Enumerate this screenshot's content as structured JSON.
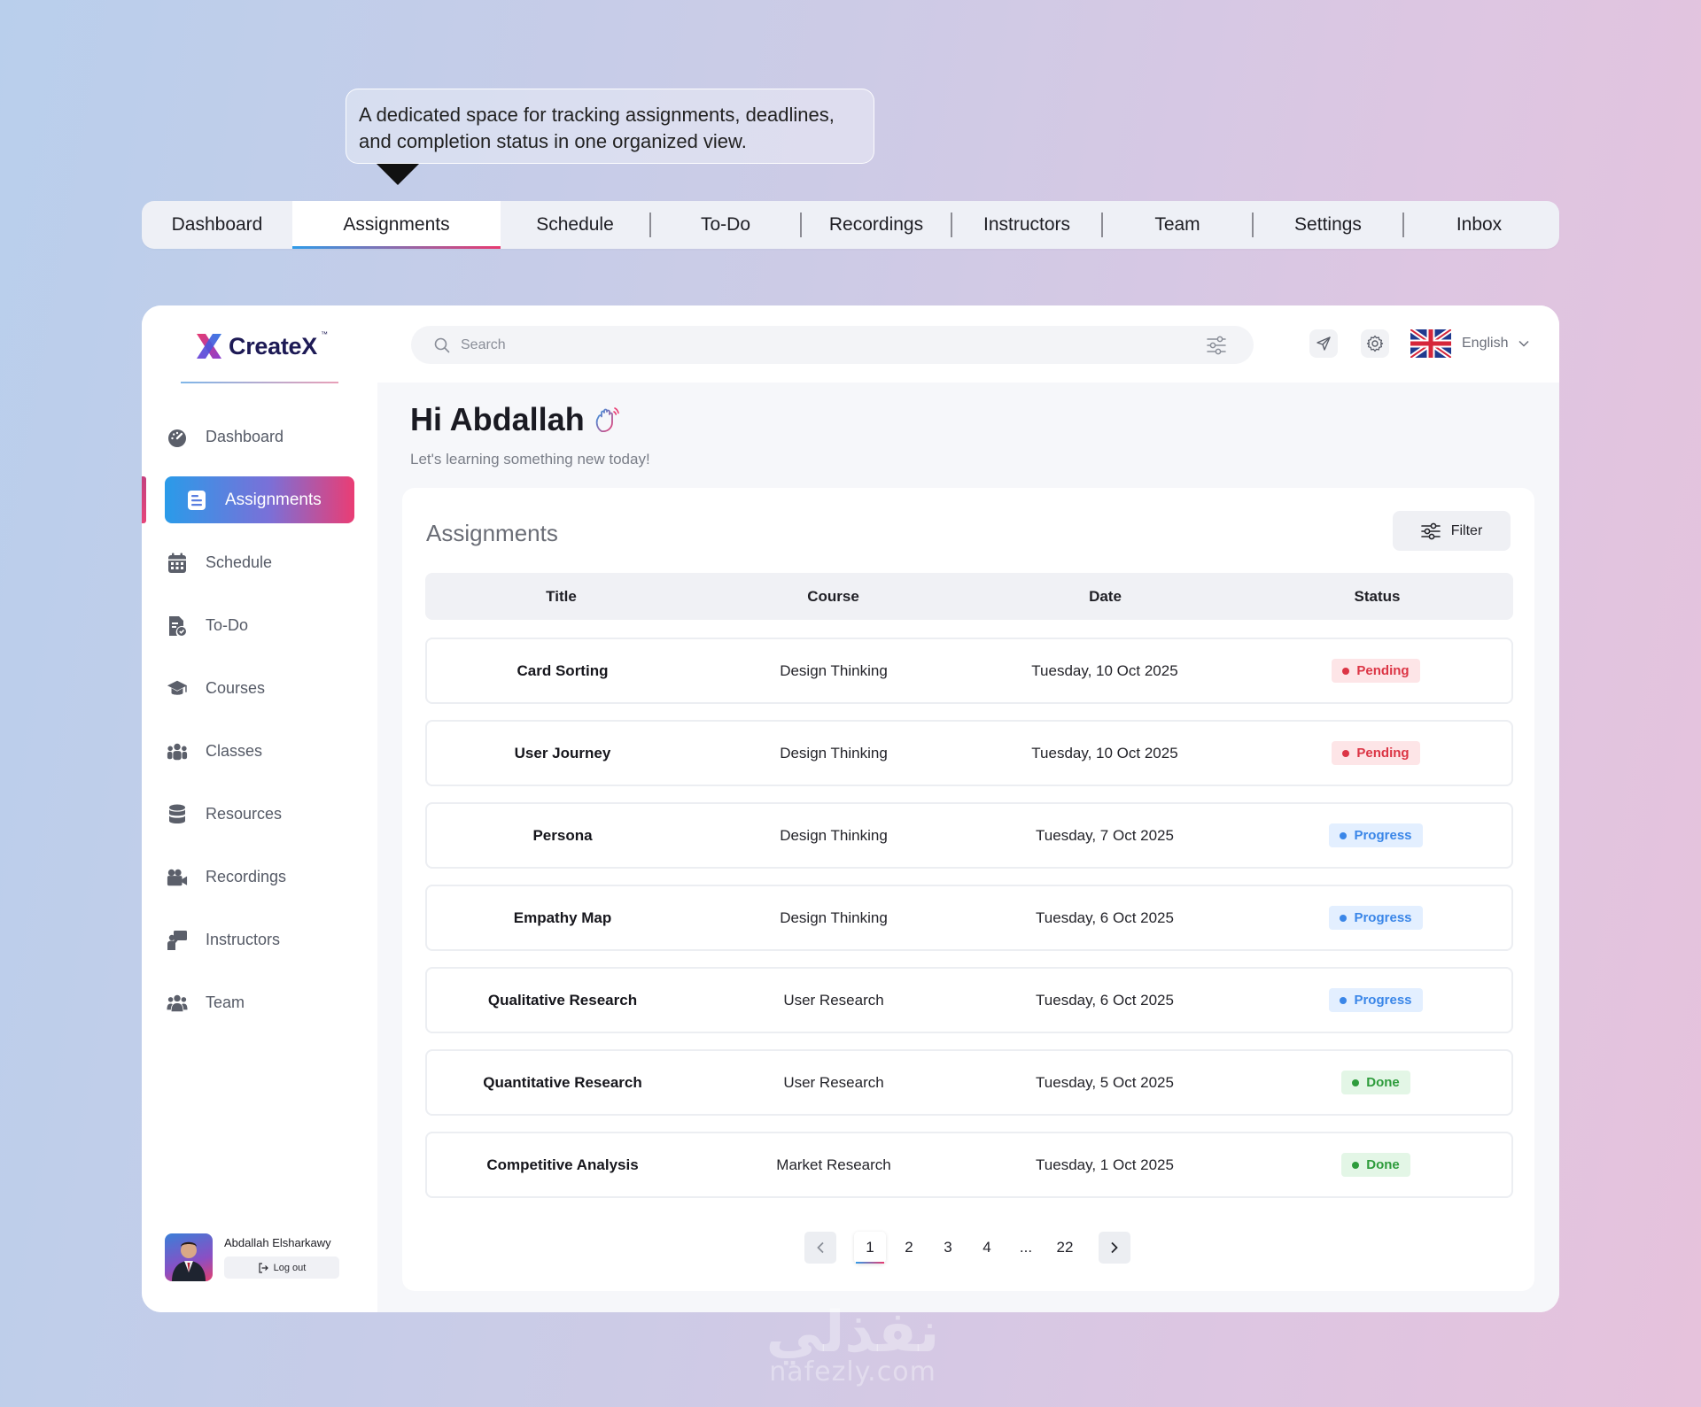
{
  "tooltip": {
    "line1": "A dedicated space for tracking assignments, deadlines,",
    "line2": "and completion status in one organized view."
  },
  "top_tabs": [
    {
      "label": "Dashboard"
    },
    {
      "label": "Assignments",
      "active": true
    },
    {
      "label": "Schedule"
    },
    {
      "label": "To-Do"
    },
    {
      "label": "Recordings"
    },
    {
      "label": "Instructors"
    },
    {
      "label": "Team"
    },
    {
      "label": "Settings"
    },
    {
      "label": "Inbox"
    }
  ],
  "brand": {
    "name": "CreateX",
    "tm": "™"
  },
  "sidebar": {
    "items": [
      {
        "label": "Dashboard",
        "icon": "gauge-icon"
      },
      {
        "label": "Assignments",
        "icon": "document-icon",
        "active": true
      },
      {
        "label": "Schedule",
        "icon": "calendar-icon"
      },
      {
        "label": "To-Do",
        "icon": "checklist-icon"
      },
      {
        "label": "Courses",
        "icon": "graduation-cap-icon"
      },
      {
        "label": "Classes",
        "icon": "group-icon"
      },
      {
        "label": "Resources",
        "icon": "database-icon"
      },
      {
        "label": "Recordings",
        "icon": "video-camera-icon"
      },
      {
        "label": "Instructors",
        "icon": "presenter-icon"
      },
      {
        "label": "Team",
        "icon": "users-icon"
      }
    ]
  },
  "user": {
    "name": "Abdallah Elsharkawy",
    "logout_label": "Log out"
  },
  "topbar": {
    "search_placeholder": "Search",
    "language": "English"
  },
  "greeting": {
    "title": "Hi Abdallah",
    "subtitle": "Let's learning something new today!"
  },
  "panel": {
    "title": "Assignments",
    "filter_label": "Filter",
    "columns": [
      "Title",
      "Course",
      "Date",
      "Status"
    ],
    "rows": [
      {
        "title": "Card Sorting",
        "course": "Design Thinking",
        "date": "Tuesday, 10 Oct 2025",
        "status": "Pending",
        "kind": "pending"
      },
      {
        "title": "User Journey",
        "course": "Design Thinking",
        "date": "Tuesday, 10 Oct 2025",
        "status": "Pending",
        "kind": "pending"
      },
      {
        "title": "Persona",
        "course": "Design Thinking",
        "date": "Tuesday, 7 Oct 2025",
        "status": "Progress",
        "kind": "progress"
      },
      {
        "title": "Empathy Map",
        "course": "Design Thinking",
        "date": "Tuesday, 6 Oct 2025",
        "status": "Progress",
        "kind": "progress"
      },
      {
        "title": "Qualitative Research",
        "course": "User Research",
        "date": "Tuesday, 6 Oct 2025",
        "status": "Progress",
        "kind": "progress"
      },
      {
        "title": "Quantitative Research",
        "course": "User Research",
        "date": "Tuesday, 5 Oct 2025",
        "status": "Done",
        "kind": "done"
      },
      {
        "title": "Competitive Analysis",
        "course": "Market Research",
        "date": "Tuesday, 1 Oct 2025",
        "status": "Done",
        "kind": "done"
      }
    ]
  },
  "pagination": {
    "pages": [
      "1",
      "2",
      "3",
      "4",
      "...",
      "22"
    ],
    "current": "1"
  },
  "watermark": {
    "arabic": "نفذلي",
    "latin": "nafezly.com"
  },
  "colors": {
    "accent_blue": "#2a9be9",
    "accent_pink": "#ea3d74",
    "pending": "#dc3545",
    "progress": "#3a86e8",
    "done": "#2e9c3c"
  }
}
